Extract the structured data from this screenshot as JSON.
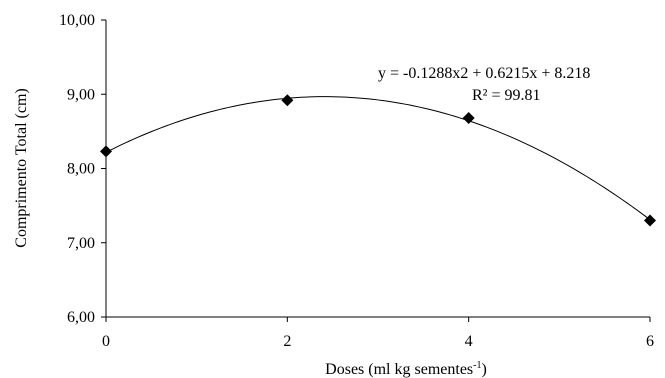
{
  "chart_data": {
    "type": "scatter",
    "x": [
      0,
      2,
      4,
      6
    ],
    "y": [
      8.23,
      8.92,
      8.68,
      7.3
    ],
    "xlim": [
      0,
      6
    ],
    "ylim": [
      6,
      10
    ],
    "x_ticks": [
      0,
      2,
      4,
      6
    ],
    "y_ticks": [
      6,
      7,
      8,
      9,
      10
    ],
    "x_tick_labels": [
      "0",
      "2",
      "4",
      "6"
    ],
    "y_tick_labels": [
      "6,00",
      "7,00",
      "8,00",
      "9,00",
      "10,00"
    ],
    "xlabel_main": "Doses (ml kg sementes",
    "xlabel_sup": "-1",
    "xlabel_end": ")",
    "ylabel": "Comprimento Total (cm)",
    "trendline": {
      "equation_text": "y = -0.1288x2 + 0.6215x + 8.218",
      "r2_text": "R² = 99.81",
      "a": -0.1288,
      "b": 0.6215,
      "c": 8.218
    },
    "grid": false,
    "marker": "diamond",
    "color": "#000000"
  }
}
